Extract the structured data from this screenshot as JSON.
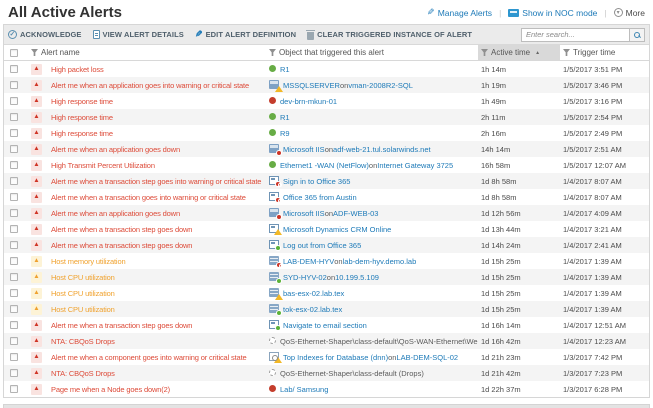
{
  "header": {
    "title": "All Active Alerts",
    "actions": [
      {
        "label": "Manage Alerts",
        "icon": "pencil-icon"
      },
      {
        "label": "Show in NOC mode",
        "icon": "noc-monitor-icon"
      },
      {
        "label": "More",
        "icon": "circle-chevron-down-icon"
      }
    ]
  },
  "toolbar": {
    "buttons": [
      {
        "label": "ACKNOWLEDGE",
        "icon": "acknowledge-icon"
      },
      {
        "label": "VIEW ALERT DETAILS",
        "icon": "document-icon"
      },
      {
        "label": "EDIT ALERT DEFINITION",
        "icon": "pencil-icon"
      },
      {
        "label": "CLEAR TRIGGERED INSTANCE OF ALERT",
        "icon": "trash-icon"
      }
    ],
    "search": {
      "placeholder": "Enter search...",
      "icon": "search-icon"
    }
  },
  "colors": {
    "link_blue": "#1d7ab8",
    "critical_red": "#dd4b39",
    "warning_orange": "#f0a22e",
    "status_up_green": "#67ac45",
    "status_down_red": "#c43d2c",
    "badge_warning_yellow": "#f2b827",
    "sorted_header_gray": "#d9d9d9"
  },
  "table": {
    "columns": [
      {
        "label": "Alert name",
        "filter": true
      },
      {
        "label": "Object that triggered this alert",
        "filter": true
      },
      {
        "label": "Active time",
        "filter": true,
        "sorted": "asc",
        "sort_arrow": "▲"
      },
      {
        "label": "Trigger time",
        "filter": true
      }
    ],
    "severity_glyph": "▲",
    "rows": [
      {
        "severity": "critical",
        "name": "High packet loss",
        "icon": "status-up",
        "object": [
          {
            "t": "R1",
            "link": true
          }
        ],
        "active": "1h 14m",
        "trigger": "1/5/2017 3:51 PM"
      },
      {
        "severity": "critical",
        "name": "Alert me when an application goes into warning or critical state",
        "icon": "app-warning",
        "object": [
          {
            "t": "MSSQLSERVER",
            "link": true
          },
          {
            "t": " on ",
            "link": false
          },
          {
            "t": "vman-2008R2-SQL",
            "link": true
          }
        ],
        "active": "1h 19m",
        "trigger": "1/5/2017 3:46 PM"
      },
      {
        "severity": "critical",
        "name": "High response time",
        "icon": "status-down",
        "object": [
          {
            "t": "dev-brn-mkun-01",
            "link": true
          }
        ],
        "active": "1h 49m",
        "trigger": "1/5/2017 3:16 PM"
      },
      {
        "severity": "critical",
        "name": "High response time",
        "icon": "status-up",
        "object": [
          {
            "t": "R1",
            "link": true
          }
        ],
        "active": "2h 11m",
        "trigger": "1/5/2017 2:54 PM"
      },
      {
        "severity": "critical",
        "name": "High response time",
        "icon": "status-up",
        "object": [
          {
            "t": "R9",
            "link": true
          }
        ],
        "active": "2h 16m",
        "trigger": "1/5/2017 2:49 PM"
      },
      {
        "severity": "critical",
        "name": "Alert me when an application goes down",
        "icon": "app-down",
        "object": [
          {
            "t": "Microsoft IIS",
            "link": true
          },
          {
            "t": " on ",
            "link": false
          },
          {
            "t": "adf-web-21.tul.solarwinds.net",
            "link": true
          }
        ],
        "active": "14h 14m",
        "trigger": "1/5/2017 2:51 AM"
      },
      {
        "severity": "critical",
        "name": "High Transmit Percent Utilization",
        "icon": "status-up",
        "object": [
          {
            "t": "Ethernet1 -WAN (NetFlow)",
            "link": true
          },
          {
            "t": " on ",
            "link": false
          },
          {
            "t": "Internet Gateway 3725",
            "link": true
          }
        ],
        "active": "16h 58m",
        "trigger": "1/5/2017 12:07 AM"
      },
      {
        "severity": "critical",
        "name": "Alert me when a transaction step goes into warning or critical state",
        "icon": "trans-critical",
        "object": [
          {
            "t": "Sign in to Office 365",
            "link": true
          }
        ],
        "active": "1d 8h 58m",
        "trigger": "1/4/2017 8:07 AM"
      },
      {
        "severity": "critical",
        "name": "Alert me when a transaction goes into warning or critical state",
        "icon": "trans-critical",
        "object": [
          {
            "t": "Office 365 from Austin",
            "link": true
          }
        ],
        "active": "1d 8h 58m",
        "trigger": "1/4/2017 8:07 AM"
      },
      {
        "severity": "critical",
        "name": "Alert me when an application goes down",
        "icon": "app-down",
        "object": [
          {
            "t": "Microsoft IIS",
            "link": true
          },
          {
            "t": " on ",
            "link": false
          },
          {
            "t": "ADF-WEB-03",
            "link": true
          }
        ],
        "active": "1d 12h 56m",
        "trigger": "1/4/2017 4:09 AM"
      },
      {
        "severity": "critical",
        "name": "Alert me when a transaction step goes down",
        "icon": "trans-warning",
        "object": [
          {
            "t": "Microsoft Dynamics CRM Online",
            "link": true
          }
        ],
        "active": "1d 13h 44m",
        "trigger": "1/4/2017 3:21 AM"
      },
      {
        "severity": "critical",
        "name": "Alert me when a transaction step goes down",
        "icon": "trans-up",
        "object": [
          {
            "t": "Log out from Office 365",
            "link": true
          }
        ],
        "active": "1d 14h 24m",
        "trigger": "1/4/2017 2:41 AM"
      },
      {
        "severity": "warning",
        "name": "Host memory utilization",
        "icon": "host-critical",
        "object": [
          {
            "t": "LAB-DEM-HYV",
            "link": true
          },
          {
            "t": " on ",
            "link": false
          },
          {
            "t": "lab-dem-hyv.demo.lab",
            "link": true
          }
        ],
        "active": "1d 15h 25m",
        "trigger": "1/4/2017 1:39 AM"
      },
      {
        "severity": "warning",
        "name": "Host CPU utilization",
        "icon": "host-up",
        "object": [
          {
            "t": "SYD-HYV-02",
            "link": true
          },
          {
            "t": " on ",
            "link": false
          },
          {
            "t": "10.199.5.109",
            "link": true
          }
        ],
        "active": "1d 15h 25m",
        "trigger": "1/4/2017 1:39 AM"
      },
      {
        "severity": "warning",
        "name": "Host CPU utilization",
        "icon": "host-warning",
        "object": [
          {
            "t": "bas-esx-02.lab.tex",
            "link": true
          }
        ],
        "active": "1d 15h 25m",
        "trigger": "1/4/2017 1:39 AM"
      },
      {
        "severity": "warning",
        "name": "Host CPU utilization",
        "icon": "host-up",
        "object": [
          {
            "t": "tok-esx-02.lab.tex",
            "link": true
          }
        ],
        "active": "1d 15h 25m",
        "trigger": "1/4/2017 1:39 AM"
      },
      {
        "severity": "critical",
        "name": "Alert me when a transaction step goes down",
        "icon": "trans-up",
        "object": [
          {
            "t": "Navigate to email section",
            "link": true
          }
        ],
        "active": "1d 16h 14m",
        "trigger": "1/4/2017 12:51 AM"
      },
      {
        "severity": "critical",
        "name": "NTA: CBQoS Drops",
        "icon": "unknown",
        "object": [
          {
            "t": "QoS-Ethernet-Shaper\\class-default\\QoS-WAN-Ethernet\\Web",
            "link": false
          }
        ],
        "active": "1d 16h 42m",
        "trigger": "1/4/2017 12:23 AM"
      },
      {
        "severity": "critical",
        "name": "Alert me when a component goes into warning or critical state",
        "icon": "comp-warning",
        "object": [
          {
            "t": "Top Indexes for Database (dnn)",
            "link": true
          },
          {
            "t": " on ",
            "link": false
          },
          {
            "t": "LAB-DEM-SQL-02",
            "link": true
          }
        ],
        "active": "1d 21h 23m",
        "trigger": "1/3/2017 7:42 PM"
      },
      {
        "severity": "critical",
        "name": "NTA: CBQoS Drops",
        "icon": "unknown",
        "object": [
          {
            "t": "QoS-Ethernet-Shaper\\class-default (Drops)",
            "link": false
          }
        ],
        "active": "1d 21h 42m",
        "trigger": "1/3/2017 7:23 PM"
      },
      {
        "severity": "critical",
        "name": "Page me when a Node goes down(2)",
        "icon": "status-down",
        "object": [
          {
            "t": "Lab/ Samsung",
            "link": true
          }
        ],
        "active": "1d 22h 37m",
        "trigger": "1/3/2017 6:28 PM"
      }
    ]
  }
}
